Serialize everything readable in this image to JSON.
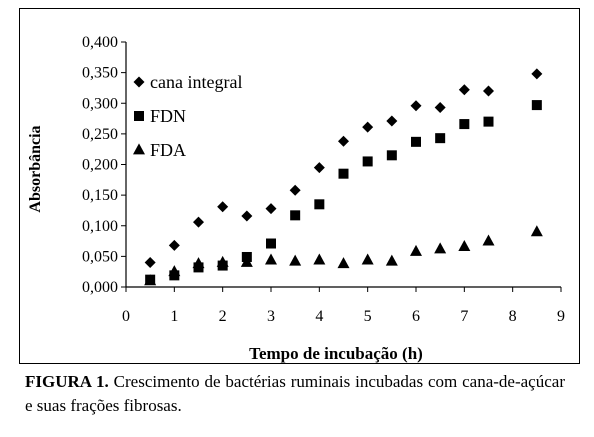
{
  "chart_data": {
    "type": "scatter",
    "xlabel": "Tempo de incubação (h)",
    "ylabel": "Absorbância",
    "xlim": [
      0,
      9
    ],
    "ylim": [
      0,
      0.4
    ],
    "x_ticks": [
      "0",
      "1",
      "2",
      "3",
      "4",
      "5",
      "6",
      "7",
      "8",
      "9"
    ],
    "y_ticks": [
      "0,000",
      "0,050",
      "0,100",
      "0,150",
      "0,200",
      "0,250",
      "0,300",
      "0,350",
      "0,400"
    ],
    "grid": false,
    "legend_position": "top-left",
    "series": [
      {
        "name": "cana integral",
        "marker": "diamond",
        "x": [
          0.5,
          1,
          1.5,
          2,
          2.5,
          3,
          3.5,
          4,
          4.5,
          5,
          5.5,
          6,
          6.5,
          7,
          7.5,
          8.5
        ],
        "y": [
          0.04,
          0.068,
          0.106,
          0.131,
          0.116,
          0.128,
          0.158,
          0.195,
          0.238,
          0.261,
          0.271,
          0.296,
          0.293,
          0.322,
          0.32,
          0.348
        ]
      },
      {
        "name": "FDN",
        "marker": "square",
        "x": [
          0.5,
          1,
          1.5,
          2,
          2.5,
          3,
          3.5,
          4,
          4.5,
          5,
          5.5,
          6,
          6.5,
          7,
          7.5,
          8.5
        ],
        "y": [
          0.012,
          0.019,
          0.032,
          0.035,
          0.049,
          0.071,
          0.117,
          0.135,
          0.185,
          0.205,
          0.215,
          0.237,
          0.243,
          0.266,
          0.27,
          0.297
        ]
      },
      {
        "name": "FDA",
        "marker": "triangle",
        "x": [
          0.5,
          1,
          1.5,
          2,
          2.5,
          3,
          3.5,
          4,
          4.5,
          5,
          5.5,
          6,
          6.5,
          7,
          7.5,
          8.5
        ],
        "y": [
          0.01,
          0.025,
          0.038,
          0.04,
          0.04,
          0.044,
          0.042,
          0.044,
          0.038,
          0.044,
          0.042,
          0.058,
          0.062,
          0.066,
          0.075,
          0.09
        ]
      }
    ]
  },
  "caption": {
    "label": "FIGURA 1.",
    "text": " Crescimento de bactérias ruminais incubadas com cana-de-açúcar e suas frações fibrosas."
  }
}
